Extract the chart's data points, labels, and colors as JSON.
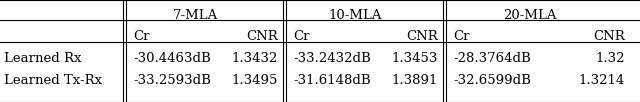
{
  "col_groups": [
    "7-MLA",
    "10-MLA",
    "20-MLA"
  ],
  "sub_cols": [
    "Cr",
    "CNR"
  ],
  "row_labels": [
    "",
    "Learned Rx",
    "Learned Tx-Rx"
  ],
  "data": [
    [
      "-30.4463dB",
      "1.3432",
      "-33.2432dB",
      "1.3453",
      "-28.3764dB",
      "1.32"
    ],
    [
      "-33.2593dB",
      "1.3495",
      "-31.6148dB",
      "1.3891",
      "-32.6599dB",
      "1.3214"
    ]
  ],
  "bg_color": "#ffffff",
  "text_color": "#000000",
  "font_size": 9.5
}
